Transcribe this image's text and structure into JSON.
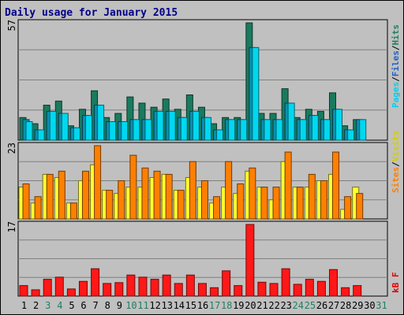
{
  "title": "Daily usage for January 2015",
  "legend": {
    "top": [
      {
        "text": "Pages",
        "color": "#00d0f0"
      },
      {
        "text": "/",
        "color": "#000000"
      },
      {
        "text": "Files",
        "color": "#2060c0"
      },
      {
        "text": "/",
        "color": "#000000"
      },
      {
        "text": "Hits",
        "color": "#1e8060"
      }
    ],
    "middle": [
      {
        "text": "Sites",
        "color": "#ff8000"
      },
      {
        "text": "/",
        "color": "#000000"
      },
      {
        "text": "Visits",
        "color": "#d0d000"
      }
    ],
    "bottom": [
      {
        "text": "kB F",
        "color": "#e00000"
      }
    ]
  },
  "colors": {
    "hits": "#1a7a5e",
    "files": "#0a8fb0",
    "pages": "#00d8f0",
    "visits": "#ffff30",
    "sites": "#ff8000",
    "kbytes": "#ff1818",
    "weekday": "#000000",
    "weekend": "#208060"
  },
  "chart_data": [
    {
      "type": "bar",
      "panel": "top",
      "ymax_label": "57",
      "ylim": [
        0,
        57
      ],
      "categories": [
        "1",
        "2",
        "3",
        "4",
        "5",
        "6",
        "7",
        "8",
        "9",
        "10",
        "11",
        "12",
        "13",
        "14",
        "15",
        "16",
        "17",
        "18",
        "19",
        "20",
        "21",
        "22",
        "23",
        "24",
        "25",
        "26",
        "27",
        "28",
        "29",
        "30",
        "31"
      ],
      "series": [
        {
          "name": "Hits",
          "values": [
            11,
            8,
            17,
            19,
            7,
            15,
            24,
            11,
            13,
            21,
            18,
            16,
            20,
            15,
            22,
            16,
            8,
            11,
            11,
            57,
            13,
            13,
            25,
            11,
            15,
            14,
            23,
            7,
            10,
            0,
            0
          ]
        },
        {
          "name": "Files",
          "values": [
            10,
            5,
            14,
            13,
            6,
            12,
            17,
            9,
            9,
            10,
            10,
            14,
            14,
            11,
            14,
            11,
            5,
            10,
            10,
            45,
            10,
            10,
            18,
            10,
            12,
            10,
            15,
            5,
            10,
            0,
            0
          ]
        },
        {
          "name": "Pages",
          "values": [
            9,
            5,
            14,
            13,
            6,
            12,
            17,
            9,
            9,
            10,
            10,
            14,
            14,
            11,
            14,
            11,
            5,
            10,
            10,
            45,
            10,
            10,
            18,
            10,
            12,
            10,
            15,
            5,
            10,
            0,
            0
          ]
        }
      ]
    },
    {
      "type": "bar",
      "panel": "middle",
      "ymax_label": "23",
      "ylim": [
        0,
        23
      ],
      "categories": [
        "1",
        "2",
        "3",
        "4",
        "5",
        "6",
        "7",
        "8",
        "9",
        "10",
        "11",
        "12",
        "13",
        "14",
        "15",
        "16",
        "17",
        "18",
        "19",
        "20",
        "21",
        "22",
        "23",
        "24",
        "25",
        "26",
        "27",
        "28",
        "29",
        "30",
        "31"
      ],
      "series": [
        {
          "name": "Visits",
          "values": [
            10,
            5,
            14,
            13,
            5,
            12,
            17,
            9,
            8,
            10,
            10,
            13,
            14,
            9,
            13,
            10,
            5,
            10,
            8,
            15,
            10,
            6,
            18,
            10,
            10,
            12,
            14,
            3,
            10,
            0,
            0
          ]
        },
        {
          "name": "Sites",
          "values": [
            11,
            7,
            14,
            15,
            5,
            15,
            23,
            9,
            12,
            20,
            16,
            15,
            14,
            9,
            18,
            12,
            7,
            18,
            11,
            16,
            10,
            10,
            21,
            10,
            14,
            12,
            21,
            7,
            8,
            0,
            0
          ]
        }
      ]
    },
    {
      "type": "bar",
      "panel": "bottom",
      "ymax_label": "17",
      "ylim": [
        0,
        17
      ],
      "categories": [
        "1",
        "2",
        "3",
        "4",
        "5",
        "6",
        "7",
        "8",
        "9",
        "10",
        "11",
        "12",
        "13",
        "14",
        "15",
        "16",
        "17",
        "18",
        "19",
        "20",
        "21",
        "22",
        "23",
        "24",
        "25",
        "26",
        "27",
        "28",
        "29",
        "30",
        "31"
      ],
      "series": [
        {
          "name": "kB F",
          "values": [
            2.5,
            1.5,
            4,
            4.5,
            1.7,
            3.5,
            6.5,
            3,
            3.2,
            5,
            4.5,
            4,
            5,
            3,
            5,
            3,
            2,
            6,
            2.5,
            17,
            3.3,
            3,
            6.5,
            2.8,
            4,
            3.5,
            6.3,
            2,
            2.5,
            0,
            0
          ]
        }
      ]
    }
  ]
}
